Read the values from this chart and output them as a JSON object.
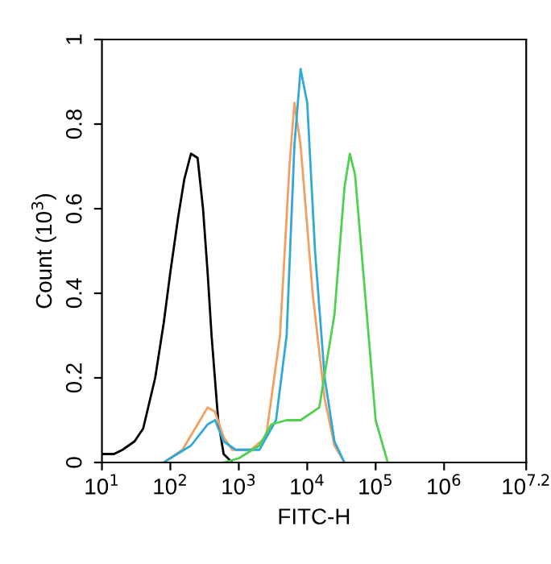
{
  "chart_data": {
    "type": "line",
    "xlabel": "FITC-H",
    "ylabel": "Count (10$^{3}$)",
    "log": "x",
    "xlim": [
      10,
      15848932
    ],
    "xticks": [
      {
        "value": 10,
        "label": "10$^{1}$"
      },
      {
        "value": 100,
        "label": "10$^{2}$"
      },
      {
        "value": 1000,
        "label": "10$^{3}$"
      },
      {
        "value": 10000,
        "label": "10$^{4}$"
      },
      {
        "value": 100000,
        "label": "10$^{5}$"
      },
      {
        "value": 1000000,
        "label": "10$^{6}$"
      },
      {
        "value": 15848932,
        "label": "10$^{7.2}$"
      }
    ],
    "ylim": [
      0,
      1
    ],
    "yticks": [
      0,
      0.2,
      0.4,
      0.6,
      0.8,
      1
    ],
    "grid": false,
    "legend": false,
    "marker": "none",
    "line_style": "solid",
    "series": [
      {
        "color": "#000000",
        "x": [
          10,
          15,
          20,
          30,
          40,
          60,
          80,
          100,
          130,
          160,
          200,
          250,
          300,
          350,
          400,
          500,
          600,
          800
        ],
        "values": [
          0.02,
          0.02,
          0.03,
          0.05,
          0.08,
          0.2,
          0.33,
          0.45,
          0.58,
          0.67,
          0.73,
          0.72,
          0.6,
          0.45,
          0.3,
          0.1,
          0.02,
          0
        ]
      },
      {
        "color": "#f0a060",
        "x": [
          80,
          150,
          250,
          350,
          450,
          600,
          800,
          1500,
          2500,
          4000,
          5500,
          6500,
          8000,
          12000,
          18000,
          25000,
          35000
        ],
        "values": [
          0,
          0.03,
          0.09,
          0.13,
          0.12,
          0.06,
          0.03,
          0.03,
          0.06,
          0.3,
          0.7,
          0.85,
          0.75,
          0.4,
          0.15,
          0.04,
          0
        ]
      },
      {
        "color": "#30a8d8",
        "x": [
          80,
          200,
          350,
          450,
          600,
          900,
          2000,
          3500,
          5000,
          6500,
          8000,
          10000,
          13000,
          18000,
          25000,
          35000
        ],
        "values": [
          0,
          0.04,
          0.09,
          0.1,
          0.05,
          0.03,
          0.03,
          0.1,
          0.3,
          0.75,
          0.93,
          0.85,
          0.5,
          0.2,
          0.05,
          0
        ]
      },
      {
        "color": "#50d050",
        "x": [
          600,
          1000,
          2000,
          3000,
          5000,
          8000,
          15000,
          25000,
          35000,
          42000,
          50000,
          70000,
          100000,
          150000
        ],
        "values": [
          0,
          0.01,
          0.04,
          0.09,
          0.1,
          0.1,
          0.13,
          0.35,
          0.65,
          0.73,
          0.68,
          0.4,
          0.1,
          0
        ]
      }
    ]
  }
}
